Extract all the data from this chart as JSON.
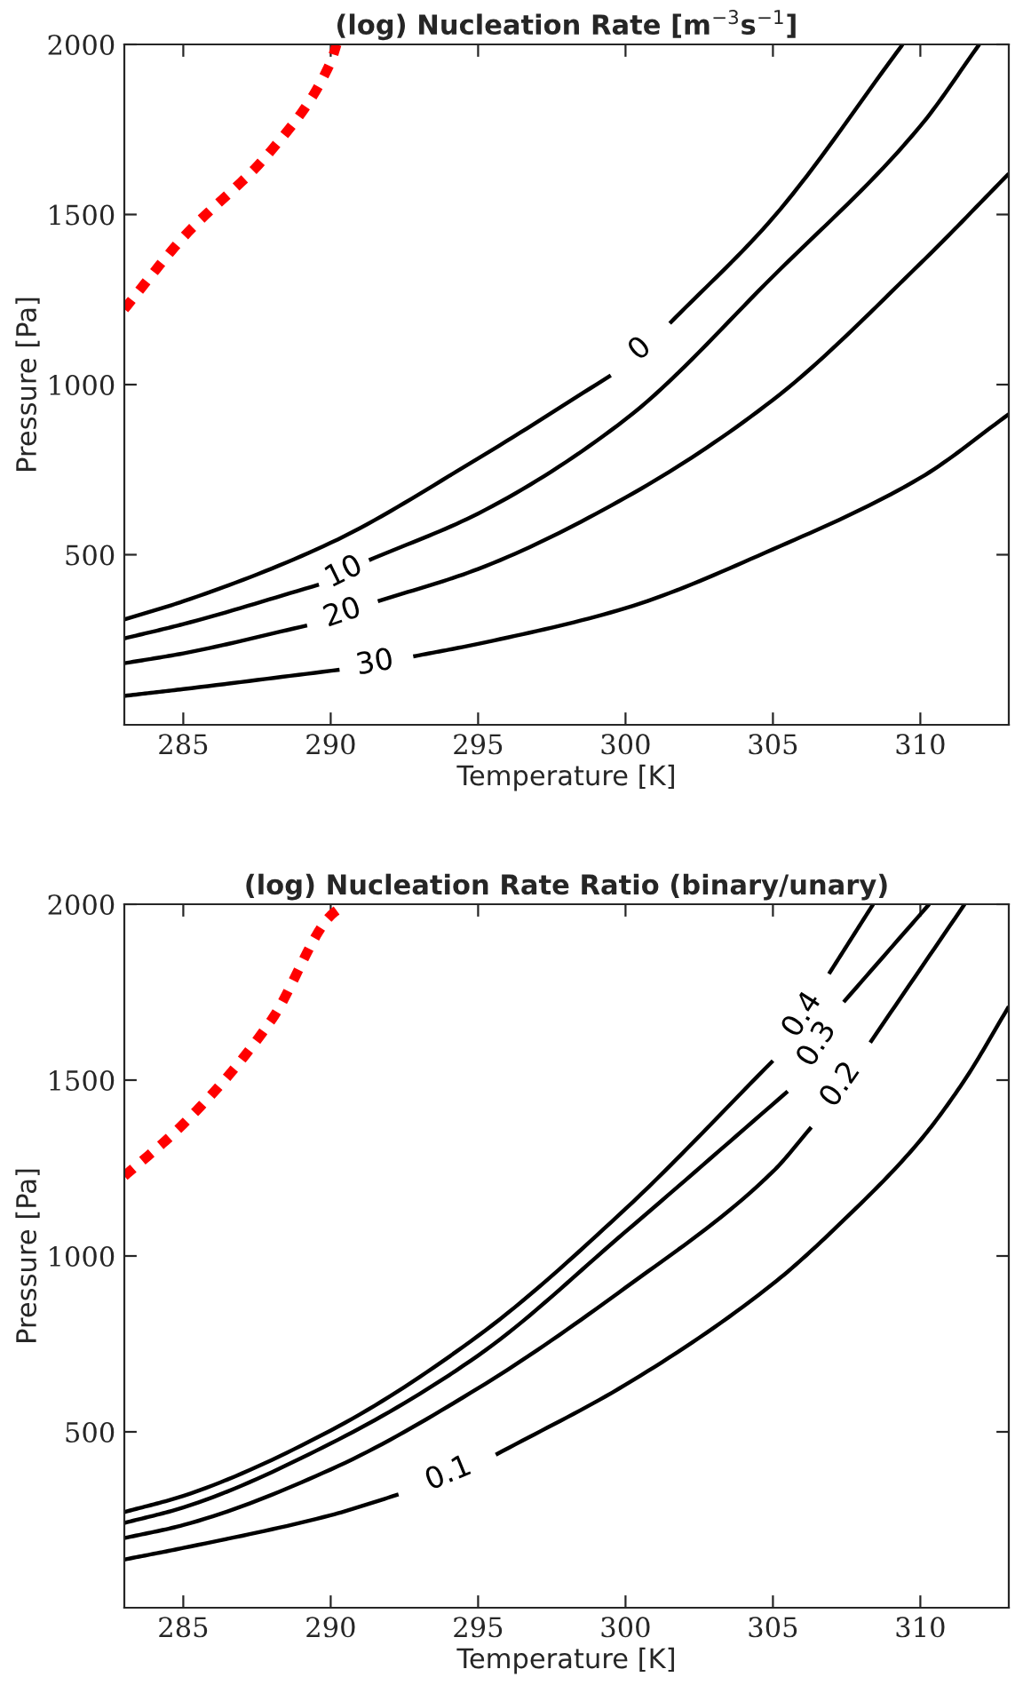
{
  "chart_data": [
    {
      "type": "line",
      "title": "(log) Nucleation Rate [m$^{−3}$s$^{−1}$]",
      "xlabel": "Temperature [K]",
      "ylabel": "Pressure [Pa]",
      "xlim": [
        283,
        313
      ],
      "ylim": [
        0,
        2000
      ],
      "xticks": [
        285,
        290,
        295,
        300,
        305,
        310
      ],
      "yticks": [
        500,
        1000,
        1500,
        2000
      ],
      "grid": false,
      "legend": false,
      "series": [
        {
          "color": "#ff0000",
          "line_style": "dotted",
          "x": [
            283,
            285,
            288,
            290,
            290.2
          ],
          "values": [
            1222,
            1433,
            1690,
            1948,
            2000
          ]
        },
        {
          "name": "0",
          "color": "#000000",
          "line_style": "solid",
          "x": [
            283,
            285,
            290,
            295,
            299.5,
            300.5,
            301.5,
            305,
            309.4
          ],
          "values": [
            310,
            363,
            535,
            783,
            1027,
            null,
            1180,
            1490,
            2000
          ]
        },
        {
          "name": "10",
          "color": "#000000",
          "line_style": "solid",
          "x": [
            283,
            285,
            289.6,
            290.45,
            291.3,
            295,
            300,
            305,
            310,
            312
          ],
          "values": [
            254,
            296,
            412,
            null,
            484,
            621,
            898,
            1318,
            1760,
            2000
          ]
        },
        {
          "name": "20",
          "color": "#000000",
          "line_style": "solid",
          "x": [
            283,
            285,
            289.2,
            290.4,
            291.6,
            295,
            300,
            305,
            310,
            313
          ],
          "values": [
            181,
            210,
            292,
            null,
            363,
            458,
            668,
            955,
            1356,
            1620
          ]
        },
        {
          "name": "30",
          "color": "#000000",
          "line_style": "solid",
          "x": [
            283,
            285,
            290.3,
            291.5,
            292.8,
            295,
            300,
            305,
            310,
            313
          ],
          "values": [
            85,
            105,
            162,
            null,
            201,
            238,
            343,
            516,
            726,
            913
          ]
        }
      ]
    },
    {
      "type": "line",
      "title": "(log) Nucleation Rate Ratio (binary/unary)",
      "xlabel": "Temperature [K]",
      "ylabel": "Pressure [Pa]",
      "xlim": [
        283,
        313
      ],
      "ylim": [
        0,
        2000
      ],
      "xticks": [
        285,
        290,
        295,
        300,
        305,
        310
      ],
      "yticks": [
        500,
        1000,
        1500,
        2000
      ],
      "grid": false,
      "legend": false,
      "series": [
        {
          "color": "#ff0000",
          "line_style": "dotted",
          "x": [
            283,
            285,
            288,
            290,
            290.5
          ],
          "values": [
            1227,
            1375,
            1672,
            1968,
            2000
          ]
        },
        {
          "name": "0.4",
          "color": "#000000",
          "line_style": "solid",
          "x": [
            283,
            285,
            290,
            295,
            300,
            305,
            306.0,
            306.9,
            308.4
          ],
          "values": [
            272,
            318,
            504,
            773,
            1134,
            1555,
            null,
            1802,
            2000
          ]
        },
        {
          "name": "0.3",
          "color": "#000000",
          "line_style": "solid",
          "x": [
            283,
            285,
            290,
            295,
            300,
            305.5,
            306.5,
            307.4,
            310.3
          ],
          "values": [
            241,
            285,
            467,
            717,
            1069,
            1468,
            null,
            1722,
            2000
          ]
        },
        {
          "name": "0.2",
          "color": "#000000",
          "line_style": "solid",
          "x": [
            283,
            285,
            290,
            295,
            300,
            305,
            306.3,
            307.3,
            308.3,
            311.5
          ],
          "values": [
            198,
            235,
            393,
            624,
            910,
            1240,
            1366,
            null,
            1607,
            2000
          ]
        },
        {
          "name": "0.1",
          "color": "#000000",
          "line_style": "solid",
          "x": [
            283,
            285,
            290,
            292.3,
            294,
            295.6,
            300,
            305,
            307.5,
            310,
            311.5,
            313
          ],
          "values": [
            137,
            170,
            263,
            322,
            null,
            435,
            634,
            921,
            1110,
            1329,
            1500,
            1709
          ]
        }
      ]
    }
  ]
}
